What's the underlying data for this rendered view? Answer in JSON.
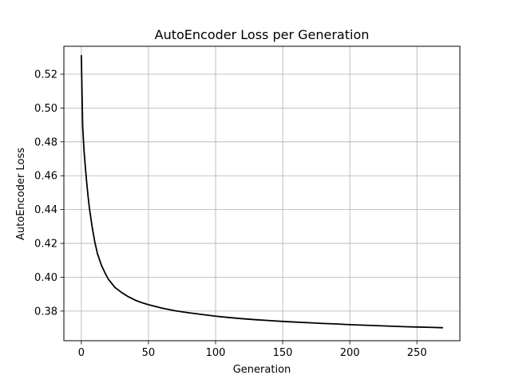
{
  "chart_data": {
    "type": "line",
    "title": "AutoEncoder Loss per Generation",
    "xlabel": "Generation",
    "ylabel": "AutoEncoder Loss",
    "xlim": [
      -13,
      282
    ],
    "ylim": [
      0.3625,
      0.5365
    ],
    "grid": true,
    "x_ticks": [
      0,
      50,
      100,
      150,
      200,
      250
    ],
    "y_ticks": [
      0.38,
      0.4,
      0.42,
      0.44,
      0.46,
      0.48,
      0.5,
      0.52
    ],
    "x_tick_labels": [
      "0",
      "50",
      "100",
      "150",
      "200",
      "250"
    ],
    "y_tick_labels": [
      "0.38",
      "0.40",
      "0.42",
      "0.44",
      "0.46",
      "0.48",
      "0.50",
      "0.52"
    ],
    "series": [
      {
        "color": "#000000",
        "x": [
          0,
          1,
          2,
          3,
          4,
          5,
          6,
          8,
          10,
          12,
          15,
          18,
          20,
          25,
          30,
          35,
          40,
          45,
          50,
          60,
          70,
          80,
          90,
          100,
          110,
          120,
          130,
          140,
          150,
          160,
          170,
          180,
          190,
          200,
          210,
          220,
          230,
          240,
          250,
          260,
          269
        ],
        "y": [
          0.531,
          0.489,
          0.475,
          0.465,
          0.456,
          0.448,
          0.441,
          0.43,
          0.421,
          0.414,
          0.407,
          0.402,
          0.399,
          0.394,
          0.391,
          0.3885,
          0.3865,
          0.385,
          0.3838,
          0.3818,
          0.3802,
          0.379,
          0.378,
          0.377,
          0.3762,
          0.3755,
          0.3749,
          0.3744,
          0.3739,
          0.3735,
          0.3731,
          0.3727,
          0.3724,
          0.372,
          0.3717,
          0.3714,
          0.3711,
          0.3708,
          0.3706,
          0.3704,
          0.3702
        ]
      }
    ]
  }
}
